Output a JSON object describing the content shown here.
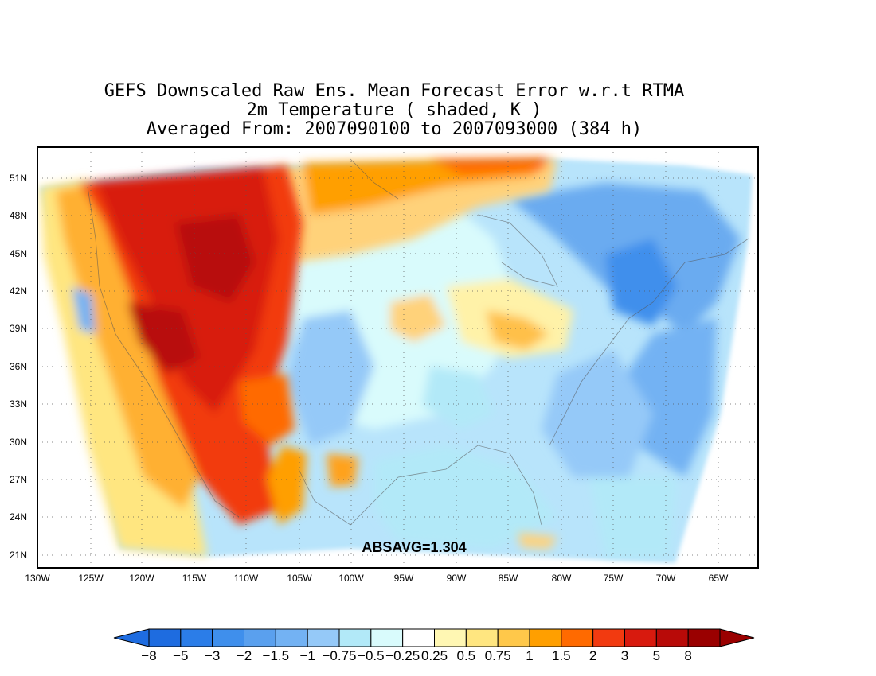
{
  "map": {
    "title_line1": "GEFS Downscaled Raw Ens. Mean Forecast Error w.r.t RTMA",
    "title_line2": "2m Temperature ( shaded, K )",
    "title_line3": "Averaged From: 2007090100 to 2007093000 (384 h)",
    "annotation": "ABSAVG=1.304",
    "lat_ticks": [
      "51N",
      "48N",
      "45N",
      "42N",
      "39N",
      "36N",
      "33N",
      "30N",
      "27N",
      "24N",
      "21N"
    ],
    "lon_ticks": [
      "130W",
      "125W",
      "120W",
      "115W",
      "110W",
      "105W",
      "100W",
      "95W",
      "90W",
      "85W",
      "80W",
      "75W",
      "70W",
      "65W"
    ],
    "lat_range": [
      20,
      53
    ],
    "lon_range": [
      -130,
      -63
    ],
    "grid": true
  },
  "colorbar": {
    "labels": [
      "−8",
      "−5",
      "−3",
      "−2",
      "−1.5",
      "−1",
      "−0.75",
      "−0.5",
      "−0.25",
      "0.25",
      "0.5",
      "0.75",
      "1",
      "1.5",
      "2",
      "3",
      "5",
      "8"
    ],
    "colors": [
      "#1e6ce0",
      "#2b7de8",
      "#3f8fec",
      "#5aa0ee",
      "#73b2f3",
      "#95c9f8",
      "#b2e9f8",
      "#d9fbfc",
      "#ffffff",
      "#fff7b3",
      "#ffe680",
      "#ffc84a",
      "#ff9f00",
      "#ff6a00",
      "#f23a10",
      "#d81a0e",
      "#b80a08",
      "#9a0000"
    ],
    "min_color": "#1e6ce0",
    "max_color": "#9a0000"
  }
}
